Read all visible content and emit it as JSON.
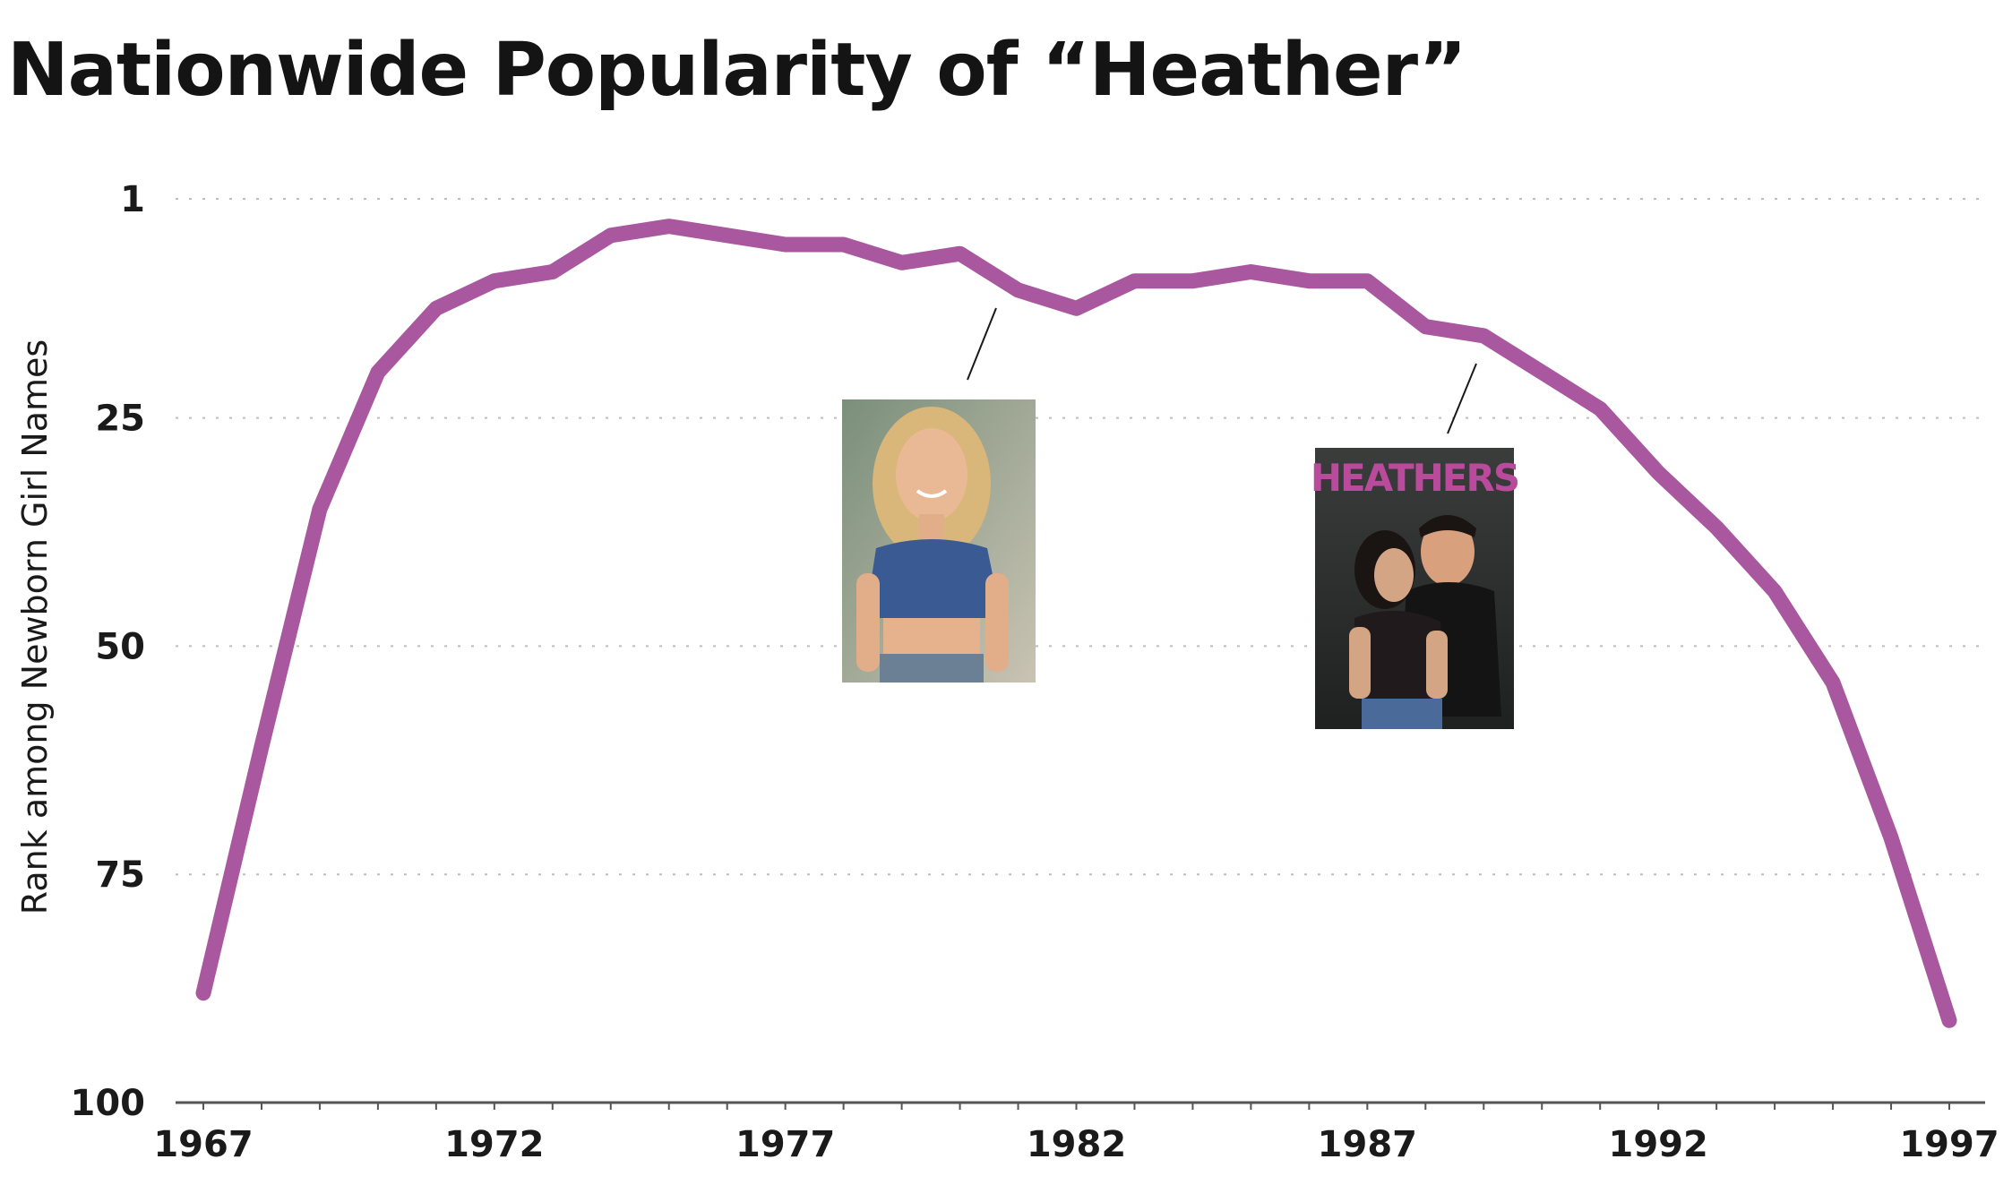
{
  "chart_data": {
    "type": "line",
    "title": "Nationwide Popularity of “Heather”",
    "xlabel": "",
    "ylabel": "Rank among Newborn Girl Names",
    "x_ticks": [
      "1967",
      "1972",
      "1977",
      "1982",
      "1987",
      "1992",
      "1997"
    ],
    "y_ticks": [
      "1",
      "25",
      "50",
      "75",
      "100"
    ],
    "xlim": [
      1967,
      1997
    ],
    "ylim": [
      1,
      100
    ],
    "y_reversed": true,
    "grid": true,
    "line_color": "#a9589f",
    "series": [
      {
        "x": [
          1967,
          1968,
          1969,
          1970,
          1971,
          1972,
          1973,
          1974,
          1975,
          1976,
          1977,
          1978,
          1979,
          1980,
          1981,
          1982,
          1983,
          1984,
          1985,
          1986,
          1987,
          1988,
          1989,
          1990,
          1991,
          1992,
          1993,
          1994,
          1995,
          1996,
          1997
        ],
        "values": [
          88,
          61,
          35,
          20,
          13,
          10,
          9,
          5,
          4,
          5,
          6,
          6,
          8,
          7,
          11,
          13,
          10,
          10,
          9,
          10,
          10,
          15,
          16,
          20,
          24,
          31,
          37,
          44,
          54,
          71,
          91
        ]
      }
    ],
    "annotations": [
      {
        "x": 1980.5,
        "y": 13,
        "image": "photo-of-woman",
        "caption": ""
      },
      {
        "x": 1988.8,
        "y": 19,
        "image": "heathers-movie-poster",
        "caption": "HEATHERS"
      }
    ]
  }
}
